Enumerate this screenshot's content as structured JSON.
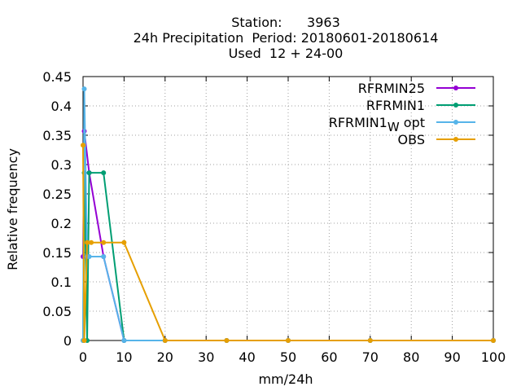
{
  "chart_data": {
    "type": "line",
    "title_lines": [
      "Station:      3963",
      "24h Precipitation  Period: 20180601-20180614",
      "Used  12 + 24-00"
    ],
    "xlabel": "mm/24h",
    "ylabel": "Relative frequency",
    "xlim": [
      0,
      100
    ],
    "ylim": [
      0,
      0.45
    ],
    "xticks": [
      0,
      10,
      20,
      30,
      40,
      50,
      60,
      70,
      80,
      90,
      100
    ],
    "yticks": [
      0,
      0.05,
      0.1,
      0.15,
      0.2,
      0.25,
      0.3,
      0.35,
      0.4,
      0.45
    ],
    "ytick_labels": [
      "0",
      "0.05",
      "0.1",
      "0.15",
      "0.2",
      "0.25",
      "0.3",
      "0.35",
      "0.4",
      "0.45"
    ],
    "grid": true,
    "legend_position": "top-right",
    "series": [
      {
        "name": "RFRMIN25",
        "color": "#9400d3",
        "points": [
          [
            0,
            0.143
          ],
          [
            0.3,
            0.357
          ],
          [
            1.5,
            0.286
          ],
          [
            5,
            0.143
          ],
          [
            10,
            0
          ],
          [
            20,
            0
          ],
          [
            35,
            0
          ],
          [
            50,
            0
          ],
          [
            70,
            0
          ],
          [
            100,
            0
          ]
        ]
      },
      {
        "name": "RFRMIN1",
        "color": "#009e73",
        "points": [
          [
            0,
            0
          ],
          [
            0.3,
            0.286
          ],
          [
            1,
            0
          ],
          [
            1.5,
            0.286
          ],
          [
            5,
            0.286
          ],
          [
            10,
            0
          ],
          [
            20,
            0
          ],
          [
            35,
            0
          ],
          [
            50,
            0
          ],
          [
            70,
            0
          ],
          [
            100,
            0
          ]
        ]
      },
      {
        "name": "RFRMIN1_W opt",
        "label_main": "RFRMIN1",
        "label_sub": "W",
        "label_tail": "opt",
        "color": "#56b4e9",
        "points": [
          [
            0,
            0
          ],
          [
            0.3,
            0.429
          ],
          [
            1,
            0.143
          ],
          [
            1.5,
            0.143
          ],
          [
            5,
            0.143
          ],
          [
            10,
            0
          ],
          [
            20,
            0
          ],
          [
            35,
            0
          ],
          [
            50,
            0
          ],
          [
            70,
            0
          ],
          [
            100,
            0
          ]
        ]
      },
      {
        "name": "OBS",
        "color": "#e69f00",
        "points": [
          [
            0,
            0.333
          ],
          [
            0.3,
            0
          ],
          [
            1,
            0.167
          ],
          [
            2,
            0.167
          ],
          [
            5,
            0.167
          ],
          [
            10,
            0.167
          ],
          [
            20,
            0
          ],
          [
            35,
            0
          ],
          [
            50,
            0
          ],
          [
            70,
            0
          ],
          [
            100,
            0
          ]
        ]
      }
    ]
  }
}
